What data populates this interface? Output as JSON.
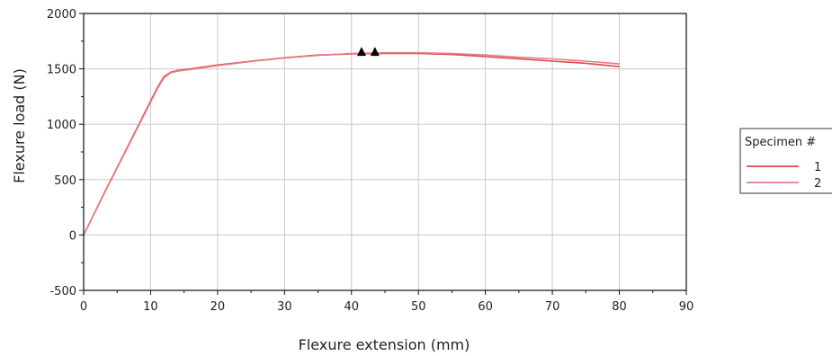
{
  "chart_data": {
    "type": "line",
    "title": "",
    "xlabel": "Flexure extension (mm)",
    "ylabel": "Flexure load (N)",
    "xlim": [
      0,
      90
    ],
    "ylim": [
      -500,
      2000
    ],
    "x_ticks": [
      0,
      10,
      20,
      30,
      40,
      50,
      60,
      70,
      80,
      90
    ],
    "y_ticks": [
      -500,
      0,
      500,
      1000,
      1500,
      2000
    ],
    "grid": true,
    "legend_title": "Specimen #",
    "legend_position": "right",
    "series": [
      {
        "name": "1",
        "color": "#e0454f",
        "x": [
          0,
          3,
          6,
          9,
          11,
          12,
          13,
          14,
          16,
          20,
          25,
          30,
          35,
          40,
          45,
          50,
          55,
          60,
          65,
          70,
          75,
          80
        ],
        "y": [
          0,
          370,
          730,
          1090,
          1330,
          1430,
          1470,
          1485,
          1500,
          1535,
          1570,
          1600,
          1625,
          1635,
          1640,
          1640,
          1630,
          1610,
          1590,
          1570,
          1550,
          1520
        ]
      },
      {
        "name": "2",
        "color": "#e87a80",
        "x": [
          0,
          3,
          6,
          9,
          11,
          12,
          13,
          14,
          16,
          20,
          25,
          30,
          35,
          40,
          45,
          50,
          55,
          60,
          65,
          70,
          75,
          80
        ],
        "y": [
          0,
          365,
          725,
          1080,
          1320,
          1420,
          1465,
          1480,
          1495,
          1530,
          1567,
          1598,
          1622,
          1638,
          1645,
          1645,
          1638,
          1625,
          1605,
          1590,
          1570,
          1545
        ]
      }
    ],
    "markers": [
      {
        "type": "triangle",
        "x": 41.5,
        "y": 1650
      },
      {
        "type": "triangle",
        "x": 43.5,
        "y": 1650
      }
    ]
  }
}
